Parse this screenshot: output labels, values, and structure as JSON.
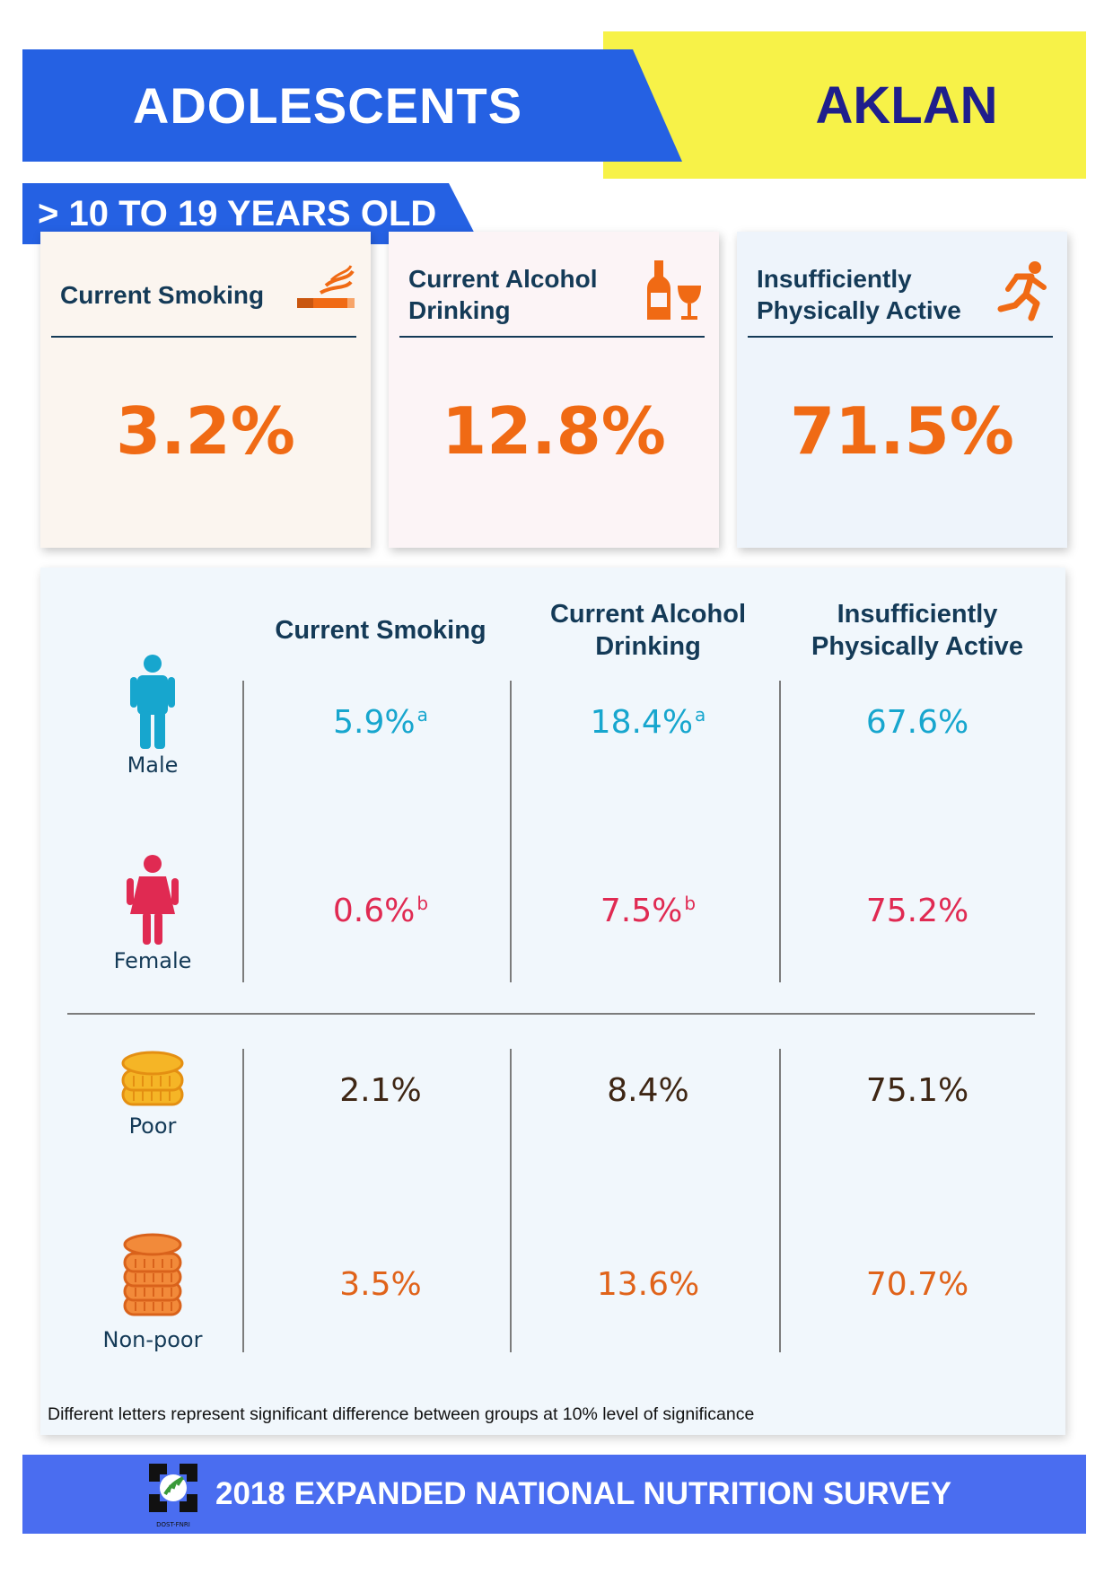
{
  "header": {
    "title": "ADOLESCENTS",
    "region": "AKLAN",
    "age_range": "> 10 TO 19 YEARS OLD"
  },
  "cards": [
    {
      "title": "Current Smoking",
      "icon": "cigarette-icon",
      "value": "3.2%"
    },
    {
      "title": "Current Alcohol Drinking",
      "icon": "bottle-glass-icon",
      "value": "12.8%"
    },
    {
      "title": "Insufficiently Physically Active",
      "icon": "running-person-icon",
      "value": "71.5%"
    }
  ],
  "table": {
    "columns": [
      "Current Smoking",
      "Current Alcohol Drinking",
      "Insufficiently Physically Active"
    ],
    "rows": [
      {
        "label": "Male",
        "icon": "male-person-icon",
        "values": [
          "5.9%",
          "18.4%",
          "67.6%"
        ],
        "sup": [
          "a",
          "a",
          ""
        ]
      },
      {
        "label": "Female",
        "icon": "female-person-icon",
        "values": [
          "0.6%",
          "7.5%",
          "75.2%"
        ],
        "sup": [
          "b",
          "b",
          ""
        ]
      },
      {
        "label": "Poor",
        "icon": "coin-stack-small-icon",
        "values": [
          "2.1%",
          "8.4%",
          "75.1%"
        ],
        "sup": [
          "",
          "",
          ""
        ]
      },
      {
        "label": "Non-poor",
        "icon": "coin-stack-large-icon",
        "values": [
          "3.5%",
          "13.6%",
          "70.7%"
        ],
        "sup": [
          "",
          "",
          ""
        ]
      }
    ],
    "footnote": "Different letters represent significant difference between groups at 10% level of significance"
  },
  "footer": {
    "text": "2018 EXPANDED NATIONAL NUTRITION SURVEY",
    "logo_text": "DOST-FNRI"
  },
  "colors": {
    "blue": "#2561e3",
    "yellow": "#f7f248",
    "navy": "#1f1e8c",
    "orange": "#f06a14",
    "male": "#17a6ce",
    "female": "#e02a52",
    "poor": "#3e2614",
    "nonpoor": "#e0631a"
  }
}
